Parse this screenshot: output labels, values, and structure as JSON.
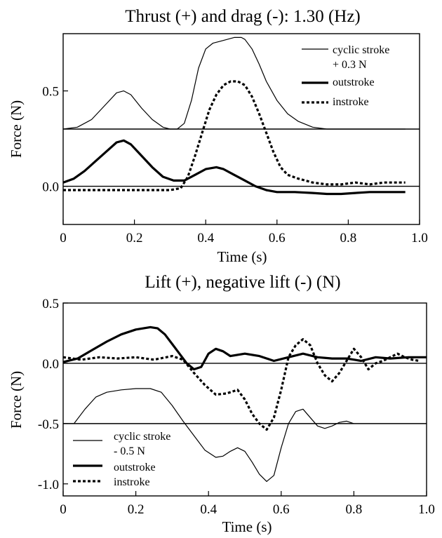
{
  "chart_data": [
    {
      "type": "line",
      "title": "Thrust (+) and drag (-): 1.30 (Hz)",
      "xlabel": "Time (s)",
      "ylabel": "Force (N)",
      "xlim": [
        0,
        1.0
      ],
      "ylim": [
        -0.2,
        0.8
      ],
      "xticks": [
        "0",
        "0.2",
        "0.4",
        "0.6",
        "0.8",
        "1.0"
      ],
      "yticks": [
        "0.0",
        "0.5"
      ],
      "ytick_values": [
        0.0,
        0.5
      ],
      "grid": false,
      "legend_position": "top-right",
      "reference_lines": [
        0.0,
        0.3
      ],
      "series": [
        {
          "name": "cyclic stroke\n+ 0.3 N",
          "style": "thin",
          "x": [
            0,
            0.04,
            0.08,
            0.12,
            0.15,
            0.17,
            0.19,
            0.22,
            0.25,
            0.28,
            0.3,
            0.32,
            0.34,
            0.36,
            0.38,
            0.4,
            0.42,
            0.44,
            0.46,
            0.48,
            0.5,
            0.51,
            0.53,
            0.55,
            0.57,
            0.6,
            0.63,
            0.66,
            0.7,
            0.74,
            0.78,
            0.85,
            0.9,
            0.96
          ],
          "values": [
            0.3,
            0.31,
            0.35,
            0.43,
            0.49,
            0.5,
            0.48,
            0.41,
            0.35,
            0.31,
            0.3,
            0.3,
            0.33,
            0.45,
            0.62,
            0.72,
            0.75,
            0.76,
            0.77,
            0.78,
            0.78,
            0.77,
            0.72,
            0.64,
            0.55,
            0.45,
            0.38,
            0.34,
            0.31,
            0.3,
            0.3,
            0.3,
            0.3,
            0.3
          ]
        },
        {
          "name": "outstroke",
          "style": "thick",
          "x": [
            0,
            0.03,
            0.06,
            0.09,
            0.12,
            0.15,
            0.17,
            0.19,
            0.22,
            0.25,
            0.28,
            0.31,
            0.34,
            0.37,
            0.4,
            0.43,
            0.45,
            0.48,
            0.51,
            0.54,
            0.57,
            0.6,
            0.65,
            0.7,
            0.74,
            0.78,
            0.82,
            0.86,
            0.9,
            0.93,
            0.96
          ],
          "values": [
            0.02,
            0.04,
            0.08,
            0.13,
            0.18,
            0.23,
            0.24,
            0.22,
            0.16,
            0.1,
            0.05,
            0.03,
            0.03,
            0.06,
            0.09,
            0.1,
            0.09,
            0.06,
            0.03,
            0.0,
            -0.02,
            -0.03,
            -0.03,
            -0.035,
            -0.04,
            -0.04,
            -0.035,
            -0.03,
            -0.03,
            -0.03,
            -0.03
          ]
        },
        {
          "name": "instroke",
          "style": "dotted",
          "x": [
            0,
            0.05,
            0.1,
            0.15,
            0.2,
            0.25,
            0.3,
            0.33,
            0.35,
            0.37,
            0.39,
            0.41,
            0.43,
            0.45,
            0.47,
            0.49,
            0.51,
            0.53,
            0.55,
            0.57,
            0.59,
            0.61,
            0.63,
            0.66,
            0.7,
            0.74,
            0.78,
            0.82,
            0.86,
            0.9,
            0.94,
            0.96
          ],
          "values": [
            -0.02,
            -0.02,
            -0.02,
            -0.02,
            -0.02,
            -0.02,
            -0.02,
            -0.01,
            0.05,
            0.16,
            0.28,
            0.4,
            0.48,
            0.53,
            0.55,
            0.55,
            0.53,
            0.47,
            0.38,
            0.28,
            0.18,
            0.1,
            0.06,
            0.04,
            0.02,
            0.01,
            0.01,
            0.02,
            0.01,
            0.02,
            0.02,
            0.02
          ]
        }
      ]
    },
    {
      "type": "line",
      "title": "Lift (+), negative lift (-) (N)",
      "xlabel": "Time (s)",
      "ylabel": "Force (N)",
      "xlim": [
        0,
        1.0
      ],
      "ylim": [
        -1.1,
        0.5
      ],
      "xticks": [
        "0",
        "0.2",
        "0.4",
        "0.6",
        "0.8",
        "1.0"
      ],
      "yticks": [
        "0.5",
        "0.0",
        "-0.5",
        "-1.0"
      ],
      "ytick_values": [
        0.5,
        0.0,
        -0.5,
        -1.0
      ],
      "grid": false,
      "legend_position": "bottom-left",
      "reference_lines": [
        0.0,
        -0.5
      ],
      "series": [
        {
          "name": "cyclic stroke\n- 0.5 N",
          "style": "thin",
          "x": [
            0,
            0.03,
            0.06,
            0.09,
            0.12,
            0.16,
            0.2,
            0.24,
            0.27,
            0.3,
            0.33,
            0.36,
            0.39,
            0.42,
            0.44,
            0.46,
            0.48,
            0.5,
            0.52,
            0.54,
            0.56,
            0.58,
            0.6,
            0.62,
            0.64,
            0.66,
            0.68,
            0.7,
            0.72,
            0.74,
            0.76,
            0.78,
            0.8
          ],
          "values": [
            -0.5,
            -0.5,
            -0.38,
            -0.28,
            -0.24,
            -0.22,
            -0.21,
            -0.21,
            -0.24,
            -0.35,
            -0.48,
            -0.6,
            -0.72,
            -0.78,
            -0.77,
            -0.73,
            -0.7,
            -0.73,
            -0.82,
            -0.92,
            -0.98,
            -0.93,
            -0.7,
            -0.5,
            -0.4,
            -0.38,
            -0.45,
            -0.52,
            -0.54,
            -0.52,
            -0.49,
            -0.48,
            -0.5
          ]
        },
        {
          "name": "outstroke",
          "style": "thick",
          "x": [
            0,
            0.04,
            0.08,
            0.12,
            0.16,
            0.2,
            0.24,
            0.26,
            0.28,
            0.3,
            0.32,
            0.34,
            0.36,
            0.38,
            0.4,
            0.42,
            0.44,
            0.46,
            0.5,
            0.54,
            0.58,
            0.62,
            0.66,
            0.7,
            0.74,
            0.78,
            0.82,
            0.86,
            0.9,
            0.95,
            1.0
          ],
          "values": [
            0.01,
            0.04,
            0.11,
            0.18,
            0.24,
            0.28,
            0.3,
            0.29,
            0.24,
            0.16,
            0.08,
            0.0,
            -0.05,
            -0.03,
            0.08,
            0.12,
            0.1,
            0.06,
            0.08,
            0.06,
            0.02,
            0.05,
            0.08,
            0.05,
            0.04,
            0.04,
            0.02,
            0.05,
            0.04,
            0.05,
            0.05
          ]
        },
        {
          "name": "instroke",
          "style": "dotted",
          "x": [
            0,
            0.05,
            0.1,
            0.15,
            0.2,
            0.25,
            0.3,
            0.33,
            0.36,
            0.39,
            0.42,
            0.45,
            0.48,
            0.5,
            0.52,
            0.54,
            0.56,
            0.58,
            0.6,
            0.62,
            0.64,
            0.66,
            0.68,
            0.7,
            0.72,
            0.74,
            0.76,
            0.78,
            0.8,
            0.82,
            0.84,
            0.86,
            0.88,
            0.9,
            0.92,
            0.94,
            0.96,
            0.98
          ],
          "values": [
            0.05,
            0.03,
            0.05,
            0.04,
            0.05,
            0.03,
            0.06,
            0.03,
            -0.08,
            -0.18,
            -0.26,
            -0.25,
            -0.22,
            -0.3,
            -0.42,
            -0.5,
            -0.55,
            -0.45,
            -0.22,
            0.05,
            0.15,
            0.2,
            0.15,
            0.0,
            -0.1,
            -0.15,
            -0.08,
            0.02,
            0.12,
            0.05,
            -0.05,
            0.0,
            0.02,
            0.05,
            0.08,
            0.05,
            0.03,
            0.02
          ]
        }
      ]
    }
  ]
}
